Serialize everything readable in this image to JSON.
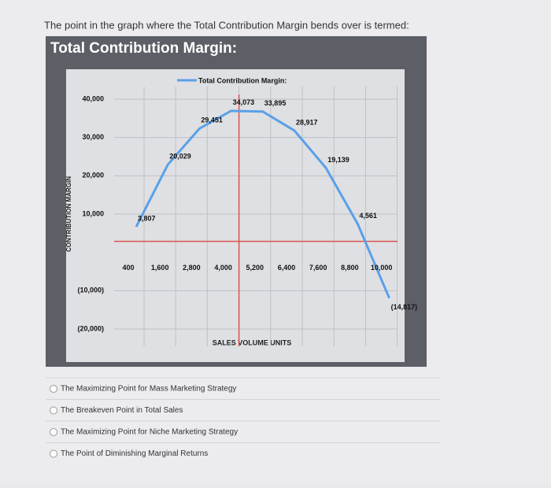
{
  "question": "The point in the graph where the Total Contribution Margin bends over is termed:",
  "chart_data": {
    "type": "line",
    "title": "Total Contribution Margin:",
    "x_label": "SALES VOLUME UNITS",
    "y_label": "CONTRIBUTION MARGIN",
    "categories": [
      "400",
      "1,600",
      "2,800",
      "4,000",
      "5,200",
      "6,400",
      "7,600",
      "8,800",
      "10,000"
    ],
    "series": [
      {
        "name": "Total Contribution Margin:",
        "color": "#5aa0e8",
        "values": [
          3807,
          20029,
          29451,
          34073,
          33895,
          28917,
          19139,
          4561,
          -14817
        ],
        "value_labels": [
          "3,807",
          "20,029",
          "29,451",
          "34,073",
          "33,895",
          "28,917",
          "19,139",
          "4,561",
          "(14,817)"
        ]
      }
    ],
    "ylim": [
      -20000,
      40000
    ],
    "yticks": [
      {
        "value": -20000,
        "label": "(20,000)"
      },
      {
        "value": -10000,
        "label": "(10,000)"
      },
      {
        "value": 10000,
        "label": "10,000"
      },
      {
        "value": 20000,
        "label": "20,000"
      },
      {
        "value": 30000,
        "label": "30,000"
      },
      {
        "value": 40000,
        "label": "40,000"
      }
    ],
    "grid": true
  },
  "options": [
    "The Maximizing Point for Mass Marketing Strategy",
    "The Breakeven Point in Total Sales",
    "The Maximizing Point for Niche Marketing Strategy",
    "The Point of Diminishing Marginal Returns"
  ]
}
